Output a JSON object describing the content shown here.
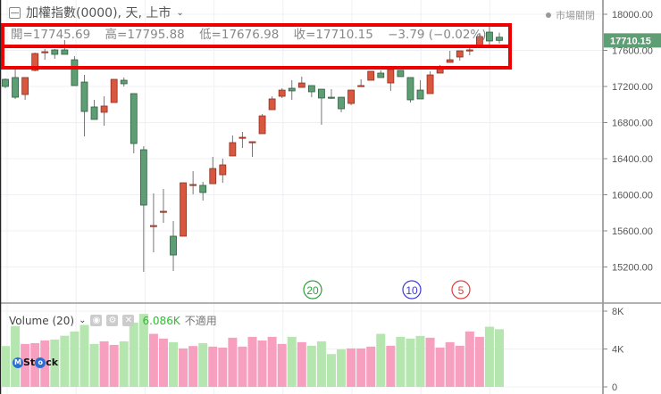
{
  "header": {
    "title": "加權指數(0000), 天, 上市",
    "collapse_icon": "collapse-icon",
    "dropdown_icon": "chevron-down-icon"
  },
  "ohlc": {
    "open": "開=17745.69",
    "high": "高=17795.88",
    "low": "低=17676.98",
    "close": "收=17710.15",
    "change": "−3.79 (−0.02%)"
  },
  "market_status": "市場關閉",
  "price_axis": {
    "ticks": [
      "18000.00",
      "17600.00",
      "17200.00",
      "16800.00",
      "16400.00",
      "16000.00",
      "15600.00",
      "15200.00"
    ],
    "last_price": "17710.15"
  },
  "volume_pane": {
    "label": "Volume (20)",
    "value": "6.086K",
    "na": "不適用",
    "ticks": [
      "8K",
      "4K",
      "0"
    ],
    "buttons": [
      "eye-icon",
      "gear-icon",
      "close-icon"
    ]
  },
  "markers": [
    {
      "label": "20",
      "color": "#2e9e3e"
    },
    {
      "label": "10",
      "color": "#3b3bd6"
    },
    {
      "label": "5",
      "color": "#e03b3b"
    }
  ],
  "logo": "MStock",
  "colors": {
    "up": "#d9573f",
    "down": "#5e9e74",
    "vol_up": "#f79fbe",
    "vol_down": "#b5e6b0",
    "annotation": "#ee0000"
  },
  "chart_data": {
    "type": "candlestick",
    "ylim": [
      15100,
      18150
    ],
    "ohlc": [
      [
        17279,
        17289,
        17180,
        17200
      ],
      [
        17299,
        17427,
        17062,
        17081
      ],
      [
        17111,
        17299,
        17052,
        17299
      ],
      [
        17378,
        17575,
        17368,
        17565
      ],
      [
        17580,
        17615,
        17496,
        17585
      ],
      [
        17605,
        17615,
        17506,
        17556
      ],
      [
        17605,
        17714,
        17556,
        17556
      ],
      [
        17496,
        17536,
        17210,
        17210
      ],
      [
        17249,
        17328,
        16647,
        16923
      ],
      [
        16973,
        17052,
        16835,
        16835
      ],
      [
        16914,
        17091,
        16765,
        16983
      ],
      [
        17022,
        17279,
        17022,
        17279
      ],
      [
        17269,
        17299,
        17200,
        17230
      ],
      [
        17121,
        17121,
        16459,
        16568
      ],
      [
        16499,
        16538,
        15146,
        15886
      ],
      [
        15649,
        16015,
        15363,
        15659
      ],
      [
        15807,
        16064,
        15689,
        15817
      ],
      [
        15541,
        15709,
        15155,
        15333
      ],
      [
        15541,
        16133,
        15541,
        16133
      ],
      [
        16104,
        16262,
        16005,
        16114
      ],
      [
        16104,
        16143,
        15936,
        16025
      ],
      [
        16123,
        16420,
        16123,
        16291
      ],
      [
        16222,
        16400,
        16133,
        16331
      ],
      [
        16430,
        16657,
        16430,
        16578
      ],
      [
        16627,
        16696,
        16518,
        16637
      ],
      [
        16578,
        16588,
        16420,
        16588
      ],
      [
        16677,
        16894,
        16677,
        16874
      ],
      [
        16943,
        17091,
        16943,
        17062
      ],
      [
        17091,
        17180,
        17072,
        17160
      ],
      [
        17180,
        17269,
        17052,
        17151
      ],
      [
        17190,
        17309,
        17190,
        17239
      ],
      [
        17210,
        17210,
        17081,
        17141
      ],
      [
        17170,
        17170,
        16775,
        17072
      ],
      [
        17081,
        17170,
        17062,
        17072
      ],
      [
        17081,
        17081,
        16914,
        16953
      ],
      [
        17012,
        17160,
        16993,
        17160
      ],
      [
        17200,
        17279,
        17200,
        17210
      ],
      [
        17269,
        17368,
        17269,
        17368
      ],
      [
        17348,
        17378,
        17299,
        17299
      ],
      [
        17239,
        17388,
        17151,
        17388
      ],
      [
        17378,
        17378,
        17309,
        17309
      ],
      [
        17299,
        17299,
        17022,
        17052
      ],
      [
        17160,
        17269,
        17062,
        17062
      ],
      [
        17121,
        17368,
        17121,
        17328
      ],
      [
        17348,
        17437,
        17348,
        17398
      ],
      [
        17467,
        17595,
        17467,
        17496
      ],
      [
        17526,
        17595,
        17486,
        17595
      ],
      [
        17595,
        17644,
        17546,
        17605
      ],
      [
        17644,
        17793,
        17644,
        17753
      ],
      [
        17802,
        17881,
        17644,
        17704
      ],
      [
        17745.69,
        17795.88,
        17676.98,
        17710.15
      ]
    ],
    "volume_k": [
      4.31,
      6.42,
      4.53,
      4.62,
      4.9,
      5.0,
      5.4,
      5.85,
      6.54,
      4.53,
      4.81,
      4.43,
      4.81,
      6.79,
      7.7,
      5.6,
      5.1,
      4.72,
      4.06,
      4.31,
      4.62,
      4.25,
      4.15,
      5.19,
      4.25,
      5.28,
      4.9,
      5.28,
      4.53,
      5.28,
      4.72,
      4.34,
      4.81,
      3.46,
      3.96,
      4.06,
      4.06,
      4.25,
      5.6,
      4.34,
      5.28,
      5.1,
      5.38,
      5.19,
      4.15,
      4.72,
      4.34,
      5.85,
      5.28,
      6.35,
      6.086
    ],
    "volume_ylim": [
      0,
      8.5
    ]
  }
}
